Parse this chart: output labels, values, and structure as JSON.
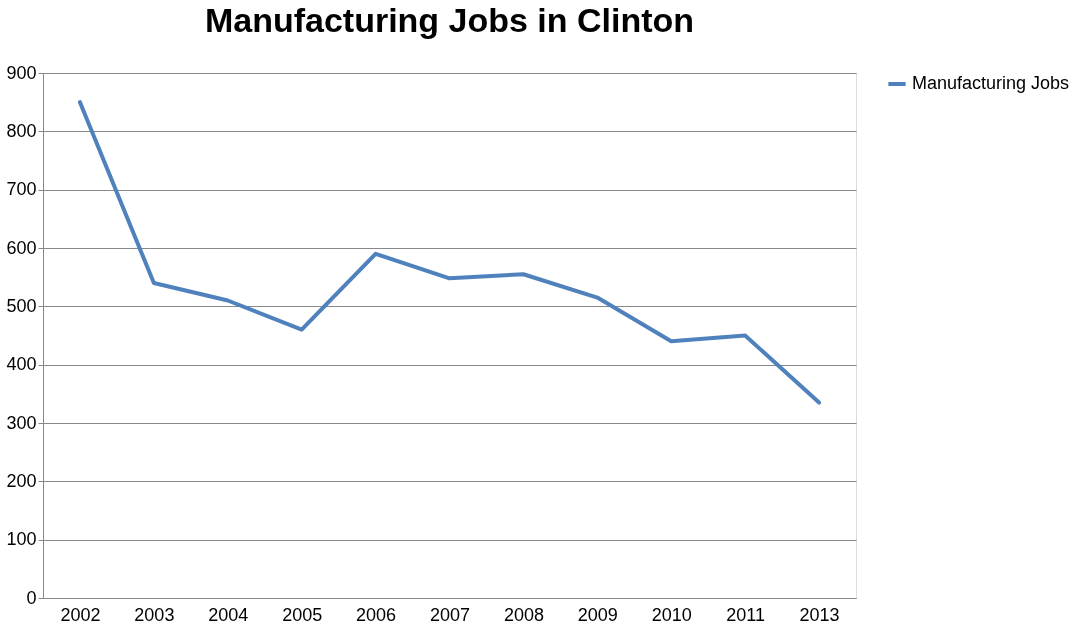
{
  "chart_data": {
    "type": "line",
    "title": "Manufacturing Jobs in Clinton",
    "categories": [
      "2002",
      "2003",
      "2004",
      "2005",
      "2006",
      "2007",
      "2008",
      "2009",
      "2010",
      "2011",
      "2013"
    ],
    "series": [
      {
        "name": "Manufacturing Jobs",
        "color": "#4f81bd",
        "values": [
          850,
          540,
          510,
          460,
          590,
          548,
          555,
          515,
          440,
          450,
          335
        ]
      }
    ],
    "ylim": [
      0,
      900
    ],
    "yticks": [
      0,
      100,
      200,
      300,
      400,
      500,
      600,
      700,
      800,
      900
    ],
    "grid": "y",
    "legend": "right",
    "marker": "none",
    "line_style": "solid"
  }
}
